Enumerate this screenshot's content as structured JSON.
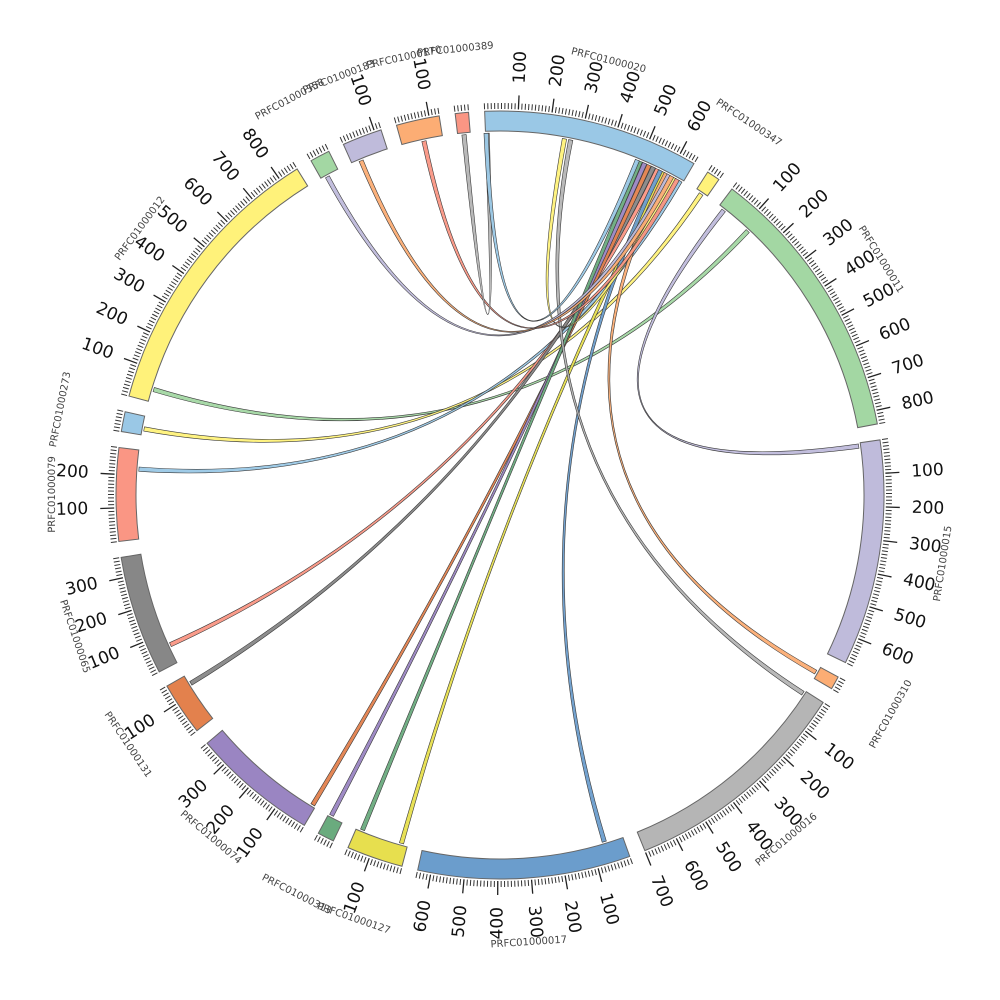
{
  "chart_data": {
    "type": "chord",
    "tick_step_minor": 10,
    "tick_step_label": 100,
    "segments": [
      {
        "id": "PRFC01000020",
        "length": 650,
        "color": "#9ac8e6"
      },
      {
        "id": "PRFC01000347",
        "length": 40,
        "color": "#fff27a"
      },
      {
        "id": "PRFC01000011",
        "length": 840,
        "color": "#a3d7a3"
      },
      {
        "id": "PRFC01000015",
        "length": 680,
        "color": "#bfbbdb"
      },
      {
        "id": "PRFC01000310",
        "length": 40,
        "color": "#fcad74"
      },
      {
        "id": "PRFC01000016",
        "length": 700,
        "color": "#b5b5b5"
      },
      {
        "id": "PRFC01000017",
        "length": 640,
        "color": "#6b9dcc"
      },
      {
        "id": "PRFC01000127",
        "length": 170,
        "color": "#e7df4e"
      },
      {
        "id": "PRFC01000313",
        "length": 50,
        "color": "#6aab7e"
      },
      {
        "id": "PRFC01000074",
        "length": 380,
        "color": "#9a85c2"
      },
      {
        "id": "PRFC01000131",
        "length": 160,
        "color": "#e3814d"
      },
      {
        "id": "PRFC01000065",
        "length": 360,
        "color": "#878787"
      },
      {
        "id": "PRFC01000079",
        "length": 280,
        "color": "#fa9684"
      },
      {
        "id": "PRFC01000273",
        "length": 60,
        "color": "#9ac8e6"
      },
      {
        "id": "PRFC01000012",
        "length": 860,
        "color": "#fff27a"
      },
      {
        "id": "PRFC01000358",
        "length": 60,
        "color": "#a3d7a3"
      },
      {
        "id": "PRFC01000183",
        "length": 120,
        "color": "#bfbbdb"
      },
      {
        "id": "PRFC01000170",
        "length": 130,
        "color": "#fcad74"
      },
      {
        "id": "PRFC01000389",
        "length": 40,
        "color": "#fa9684"
      }
    ],
    "links": [
      {
        "a": "PRFC01000012",
        "a_pos": 40,
        "b": "PRFC01000011",
        "b_pos": 120,
        "color": "#a3d7a3"
      },
      {
        "a": "PRFC01000273",
        "a_pos": 20,
        "b": "PRFC01000347",
        "b_pos": 20,
        "color": "#fff27a"
      },
      {
        "a": "PRFC01000079",
        "a_pos": 220,
        "b": "PRFC01000020",
        "b_pos": 640,
        "color": "#9ac8e6"
      },
      {
        "a": "PRFC01000065",
        "a_pos": 60,
        "b": "PRFC01000020",
        "b_pos": 560,
        "color": "#fa9684"
      },
      {
        "a": "PRFC01000131",
        "a_pos": 130,
        "b": "PRFC01000020",
        "b_pos": 545,
        "color": "#878787"
      },
      {
        "a": "PRFC01000074",
        "a_pos": 10,
        "b": "PRFC01000020",
        "b_pos": 530,
        "color": "#e3814d"
      },
      {
        "a": "PRFC01000313",
        "a_pos": 40,
        "b": "PRFC01000020",
        "b_pos": 515,
        "color": "#9a85c2"
      },
      {
        "a": "PRFC01000127",
        "a_pos": 150,
        "b": "PRFC01000020",
        "b_pos": 500,
        "color": "#6aab7e"
      },
      {
        "a": "PRFC01000127",
        "a_pos": 20,
        "b": "PRFC01000020",
        "b_pos": 580,
        "color": "#e7df4e"
      },
      {
        "a": "PRFC01000017",
        "a_pos": 60,
        "b": "PRFC01000020",
        "b_pos": 570,
        "color": "#6b9dcc"
      },
      {
        "a": "PRFC01000016",
        "a_pos": 10,
        "b": "PRFC01000020",
        "b_pos": 270,
        "color": "#b5b5b5"
      },
      {
        "a": "PRFC01000310",
        "a_pos": 20,
        "b": "PRFC01000020",
        "b_pos": 590,
        "color": "#fcad74"
      },
      {
        "a": "PRFC01000015",
        "a_pos": 10,
        "b": "PRFC01000011",
        "b_pos": 20,
        "color": "#bfbbdb"
      },
      {
        "a": "PRFC01000020",
        "a_pos": 250,
        "b": "PRFC01000020",
        "b_pos": 620,
        "color": "#fff27a"
      },
      {
        "a": "PRFC01000358",
        "a_pos": 20,
        "b": "PRFC01000020",
        "b_pos": 600,
        "color": "#bfbbdb"
      },
      {
        "a": "PRFC01000183",
        "a_pos": 30,
        "b": "PRFC01000020",
        "b_pos": 610,
        "color": "#fcad74"
      },
      {
        "a": "PRFC01000170",
        "a_pos": 70,
        "b": "PRFC01000020",
        "b_pos": 630,
        "color": "#fa9684"
      },
      {
        "a": "PRFC01000389",
        "a_pos": 20,
        "b": "PRFC01000020",
        "b_pos": 5,
        "color": "#b5b5b5"
      },
      {
        "a": "PRFC01000020",
        "a_pos": 2,
        "b": "PRFC01000020",
        "b_pos": 490,
        "color": "#9ac8e6"
      }
    ]
  }
}
